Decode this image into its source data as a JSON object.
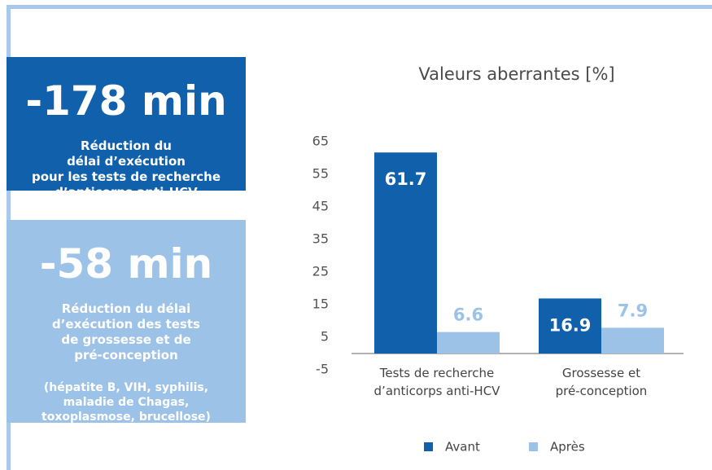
{
  "panels": [
    {
      "stat": "-178 min",
      "description": "Réduction du\ndélai d’exécution\npour les tests de recherche\nd’anticorps anti-HCV"
    },
    {
      "stat": "-58 min",
      "description": "Réduction du délai\nd’exécution des tests\nde grossesse et de\npré-conception",
      "note": "(hépatite B, VIH, syphilis,\nmaladie de Chagas,\ntoxoplasmose, brucellose)"
    }
  ],
  "chart_data": {
    "type": "bar",
    "title": "Valeurs aberrantes [%]",
    "categories": [
      "Tests de recherche\nd’anticorps anti-HCV",
      "Grossesse et\npré-conception"
    ],
    "series": [
      {
        "name": "Avant",
        "color": "#1060ab",
        "values": [
          61.7,
          16.9
        ]
      },
      {
        "name": "Après",
        "color": "#9dc2e8",
        "values": [
          6.6,
          7.9
        ]
      }
    ],
    "ylim": [
      -5,
      65
    ],
    "yticks": [
      -5,
      5,
      15,
      25,
      35,
      45,
      55,
      65
    ],
    "grid": false,
    "legend": "bottom"
  }
}
